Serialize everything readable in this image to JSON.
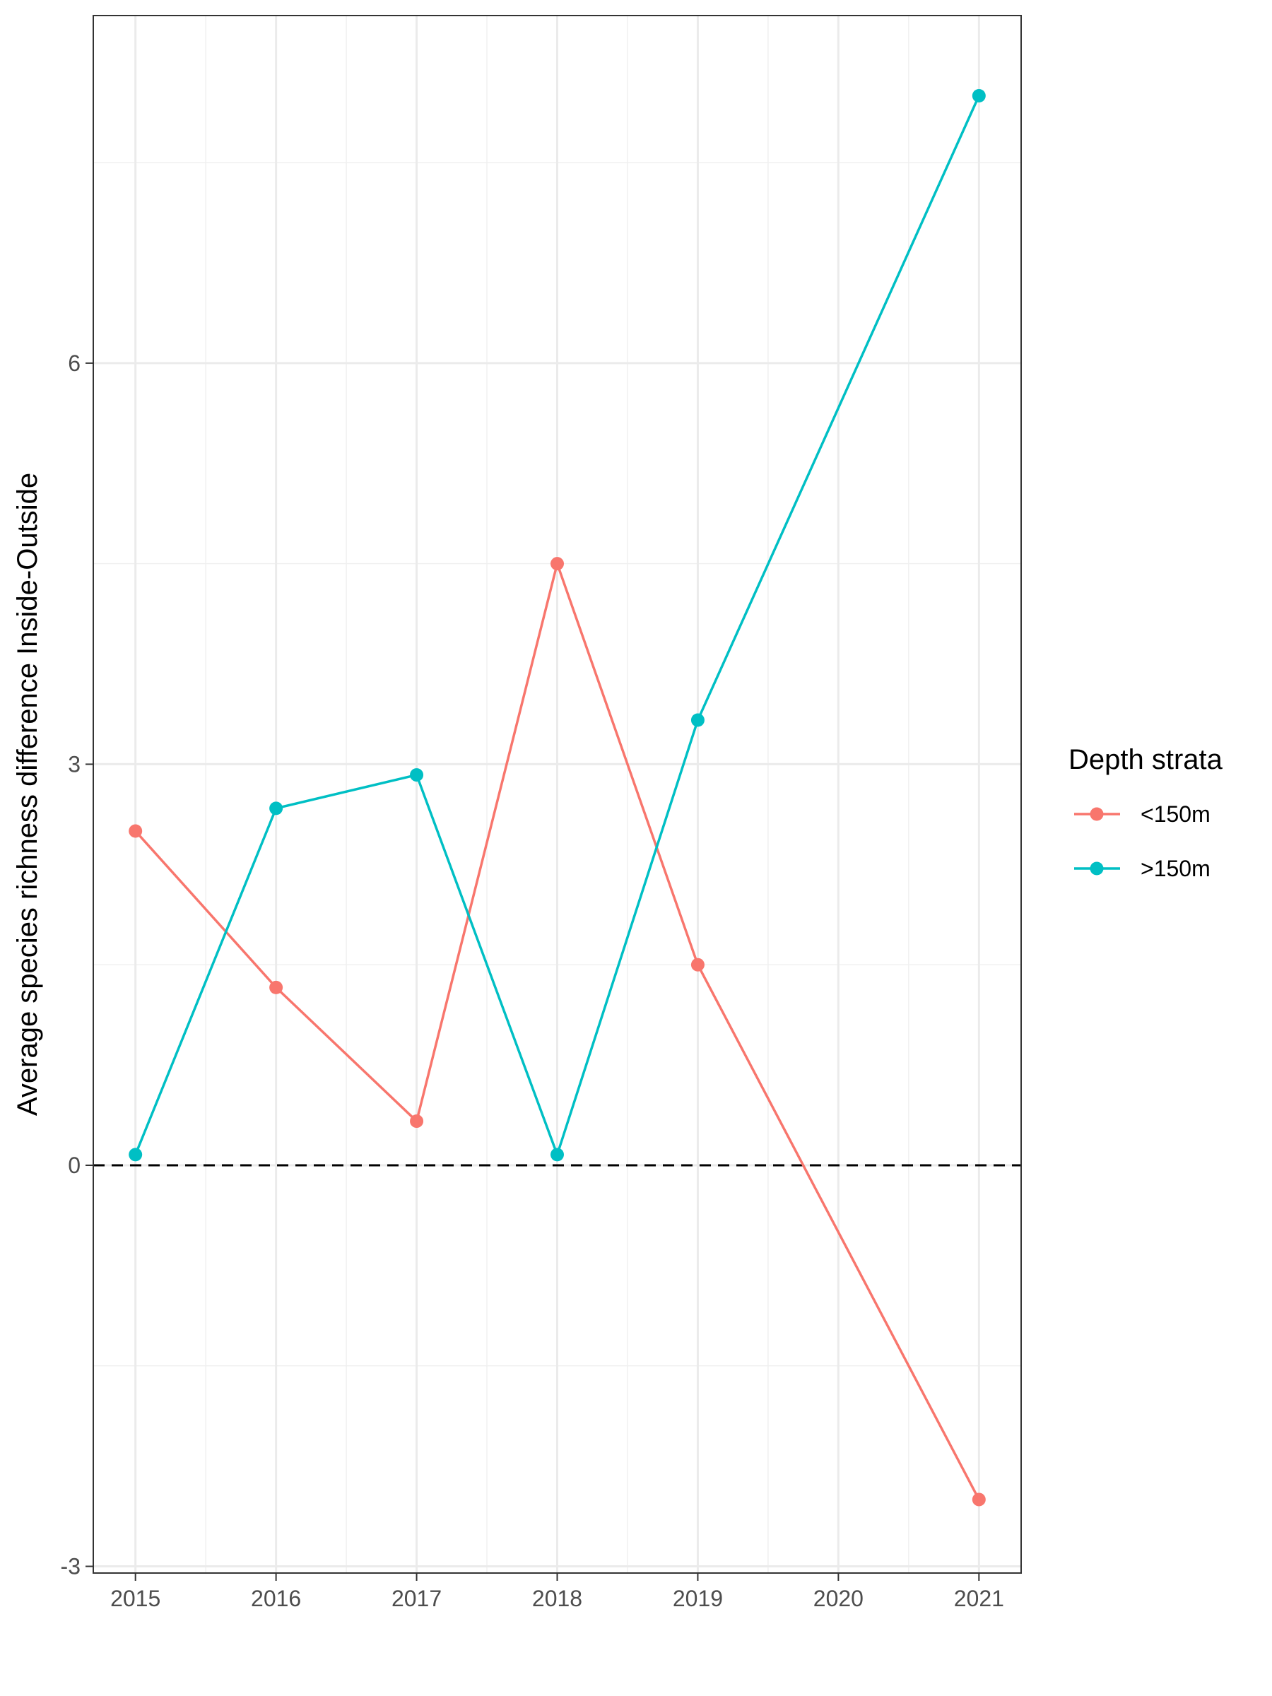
{
  "chart_data": {
    "type": "line",
    "title": "",
    "xlabel": "",
    "ylabel": "Average species richness difference Inside-Outside",
    "x": [
      2015,
      2016,
      2017,
      2018,
      2019,
      2020,
      2021
    ],
    "xlim": [
      2014.7,
      2021.3
    ],
    "ylim": [
      -3.05,
      8.6
    ],
    "x_ticks": [
      2015,
      2016,
      2017,
      2018,
      2019,
      2020,
      2021
    ],
    "y_ticks": [
      -3,
      0,
      3,
      6
    ],
    "grid": true,
    "reference_line": {
      "y": 0,
      "style": "dashed",
      "color": "#000000"
    },
    "legend": {
      "title": "Depth strata",
      "position": "right"
    },
    "series": [
      {
        "name": "<150m",
        "color": "#F8766D",
        "points": [
          {
            "x": 2015,
            "y": 2.5
          },
          {
            "x": 2016,
            "y": 1.33
          },
          {
            "x": 2017,
            "y": 0.33
          },
          {
            "x": 2018,
            "y": 4.5
          },
          {
            "x": 2019,
            "y": 1.5
          },
          {
            "x": 2021,
            "y": -2.5
          }
        ]
      },
      {
        "name": ">150m",
        "color": "#00BFC4",
        "points": [
          {
            "x": 2015,
            "y": 0.08
          },
          {
            "x": 2016,
            "y": 2.67
          },
          {
            "x": 2017,
            "y": 2.92
          },
          {
            "x": 2018,
            "y": 0.08
          },
          {
            "x": 2019,
            "y": 3.33
          },
          {
            "x": 2021,
            "y": 8.0
          }
        ]
      }
    ]
  }
}
